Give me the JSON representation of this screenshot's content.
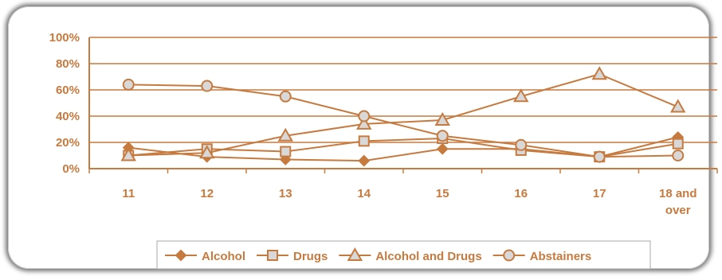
{
  "chart_data": {
    "type": "line",
    "title": "",
    "xlabel": "",
    "ylabel": "",
    "categories": [
      "11",
      "12",
      "13",
      "14",
      "15",
      "16",
      "17",
      "18 and over"
    ],
    "y_ticks": [
      "0%",
      "20%",
      "40%",
      "60%",
      "80%",
      "100%"
    ],
    "ylim": [
      0,
      100
    ],
    "grid": true,
    "legend_position": "bottom",
    "color": "#c77a3e",
    "series": [
      {
        "name": "Alcohol",
        "marker": "diamond",
        "values": [
          16,
          9,
          7,
          6,
          15,
          15,
          9,
          24
        ]
      },
      {
        "name": "Drugs",
        "marker": "square",
        "values": [
          10,
          15,
          13,
          21,
          23,
          14,
          9,
          19
        ]
      },
      {
        "name": "Alcohol and Drugs",
        "marker": "triangle",
        "values": [
          10,
          12,
          25,
          34,
          37,
          55,
          72,
          47
        ]
      },
      {
        "name": "Abstainers",
        "marker": "circle",
        "values": [
          64,
          63,
          55,
          40,
          25,
          18,
          9,
          10
        ]
      }
    ]
  }
}
